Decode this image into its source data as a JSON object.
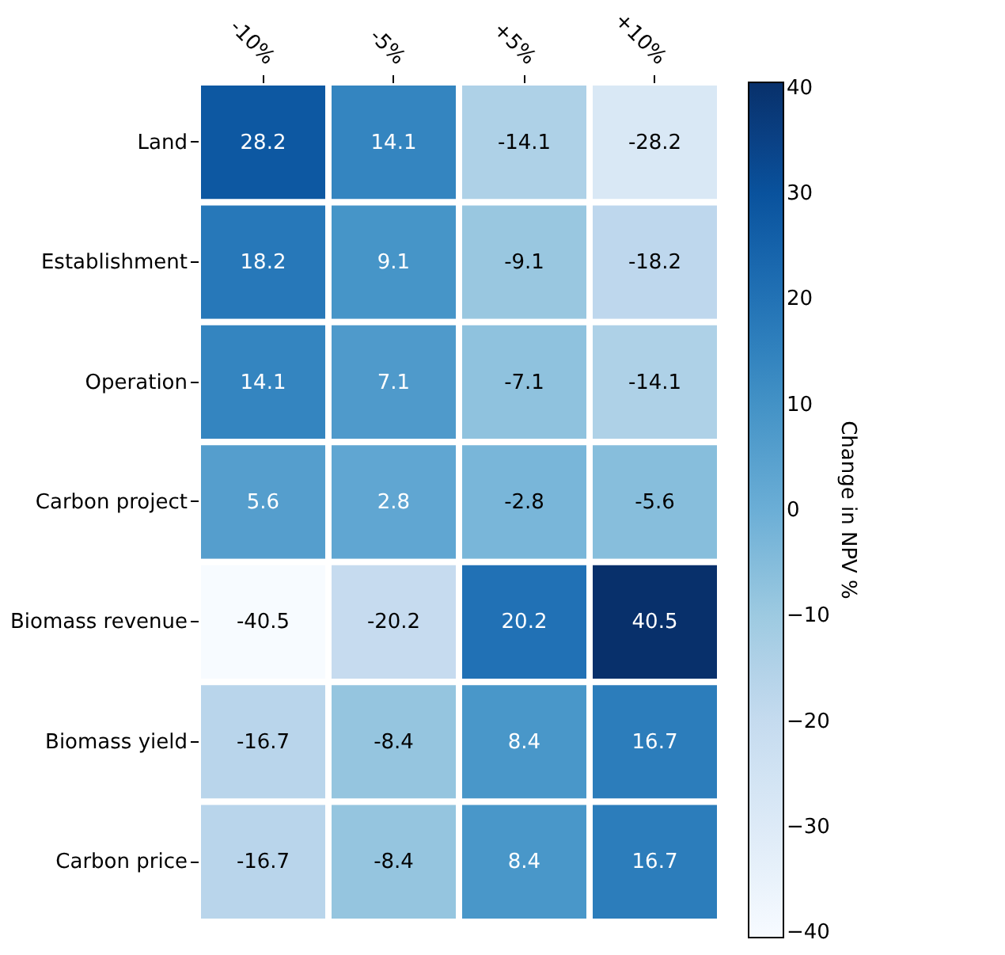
{
  "chart_data": {
    "type": "heatmap",
    "categories": [
      "-10%",
      "-5%",
      "+5%",
      "+10%"
    ],
    "y_categories": [
      "Land",
      "Establishment",
      "Operation",
      "Carbon project",
      "Biomass revenue",
      "Biomass yield",
      "Carbon price"
    ],
    "cells": [
      [
        28.2,
        14.1,
        -14.1,
        -28.2
      ],
      [
        18.2,
        9.1,
        -9.1,
        -18.2
      ],
      [
        14.1,
        7.1,
        -7.1,
        -14.1
      ],
      [
        5.6,
        2.8,
        -2.8,
        -5.6
      ],
      [
        -40.5,
        -20.2,
        20.2,
        40.5
      ],
      [
        -16.7,
        -8.4,
        8.4,
        16.7
      ],
      [
        -16.7,
        -8.4,
        8.4,
        16.7
      ]
    ],
    "clim": [
      -40.5,
      40.5
    ],
    "cticks": [
      -40,
      -30,
      -20,
      -10,
      0,
      10,
      20,
      30,
      40
    ],
    "clabel": "Change in NPV %",
    "data_labels": true
  }
}
